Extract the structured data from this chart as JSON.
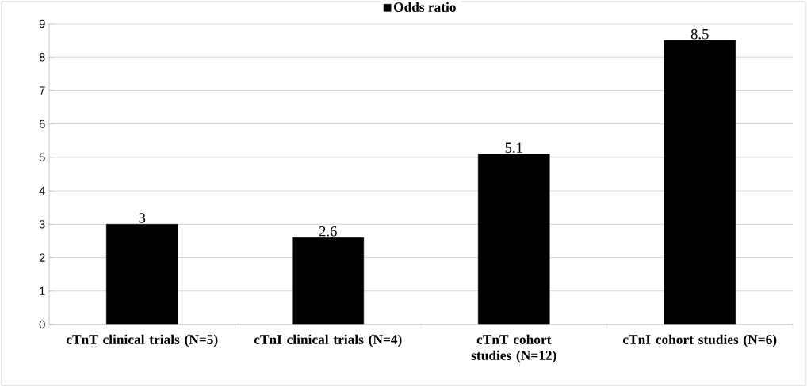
{
  "chart_data": {
    "type": "bar",
    "categories": [
      "cTnT clinical trials (N=5)",
      "cTnI clinical trials (N=4)",
      "cTnT cohort studies (N=12)",
      "cTnI cohort studies (N=6)"
    ],
    "series": [
      {
        "name": "Odds ratio",
        "color": "#000000",
        "values": [
          3,
          2.6,
          5.1,
          8.5
        ]
      }
    ],
    "ylim": [
      0,
      9
    ],
    "yticks": [
      0,
      1,
      2,
      3,
      4,
      5,
      6,
      7,
      8,
      9
    ],
    "grid": "y",
    "legend": "top",
    "data_labels": true
  }
}
